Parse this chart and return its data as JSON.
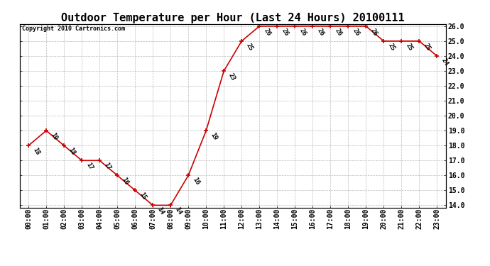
{
  "title": "Outdoor Temperature per Hour (Last 24 Hours) 20100111",
  "copyright_text": "Copyright 2010 Cartronics.com",
  "hours": [
    "00:00",
    "01:00",
    "02:00",
    "03:00",
    "04:00",
    "05:00",
    "06:00",
    "07:00",
    "08:00",
    "09:00",
    "10:00",
    "11:00",
    "12:00",
    "13:00",
    "14:00",
    "15:00",
    "16:00",
    "17:00",
    "18:00",
    "19:00",
    "20:00",
    "21:00",
    "22:00",
    "23:00"
  ],
  "temperatures": [
    18,
    19,
    18,
    17,
    17,
    16,
    15,
    14,
    14,
    16,
    19,
    23,
    25,
    26,
    26,
    26,
    26,
    26,
    26,
    26,
    25,
    25,
    25,
    24
  ],
  "ylim_min": 14.0,
  "ylim_max": 26.0,
  "line_color": "#cc0000",
  "marker_color": "#cc0000",
  "bg_color": "#ffffff",
  "grid_color": "#bbbbbb",
  "title_fontsize": 11,
  "copyright_fontsize": 6,
  "label_fontsize": 6.5,
  "tick_fontsize": 7,
  "fig_width": 6.9,
  "fig_height": 3.75,
  "dpi": 100
}
